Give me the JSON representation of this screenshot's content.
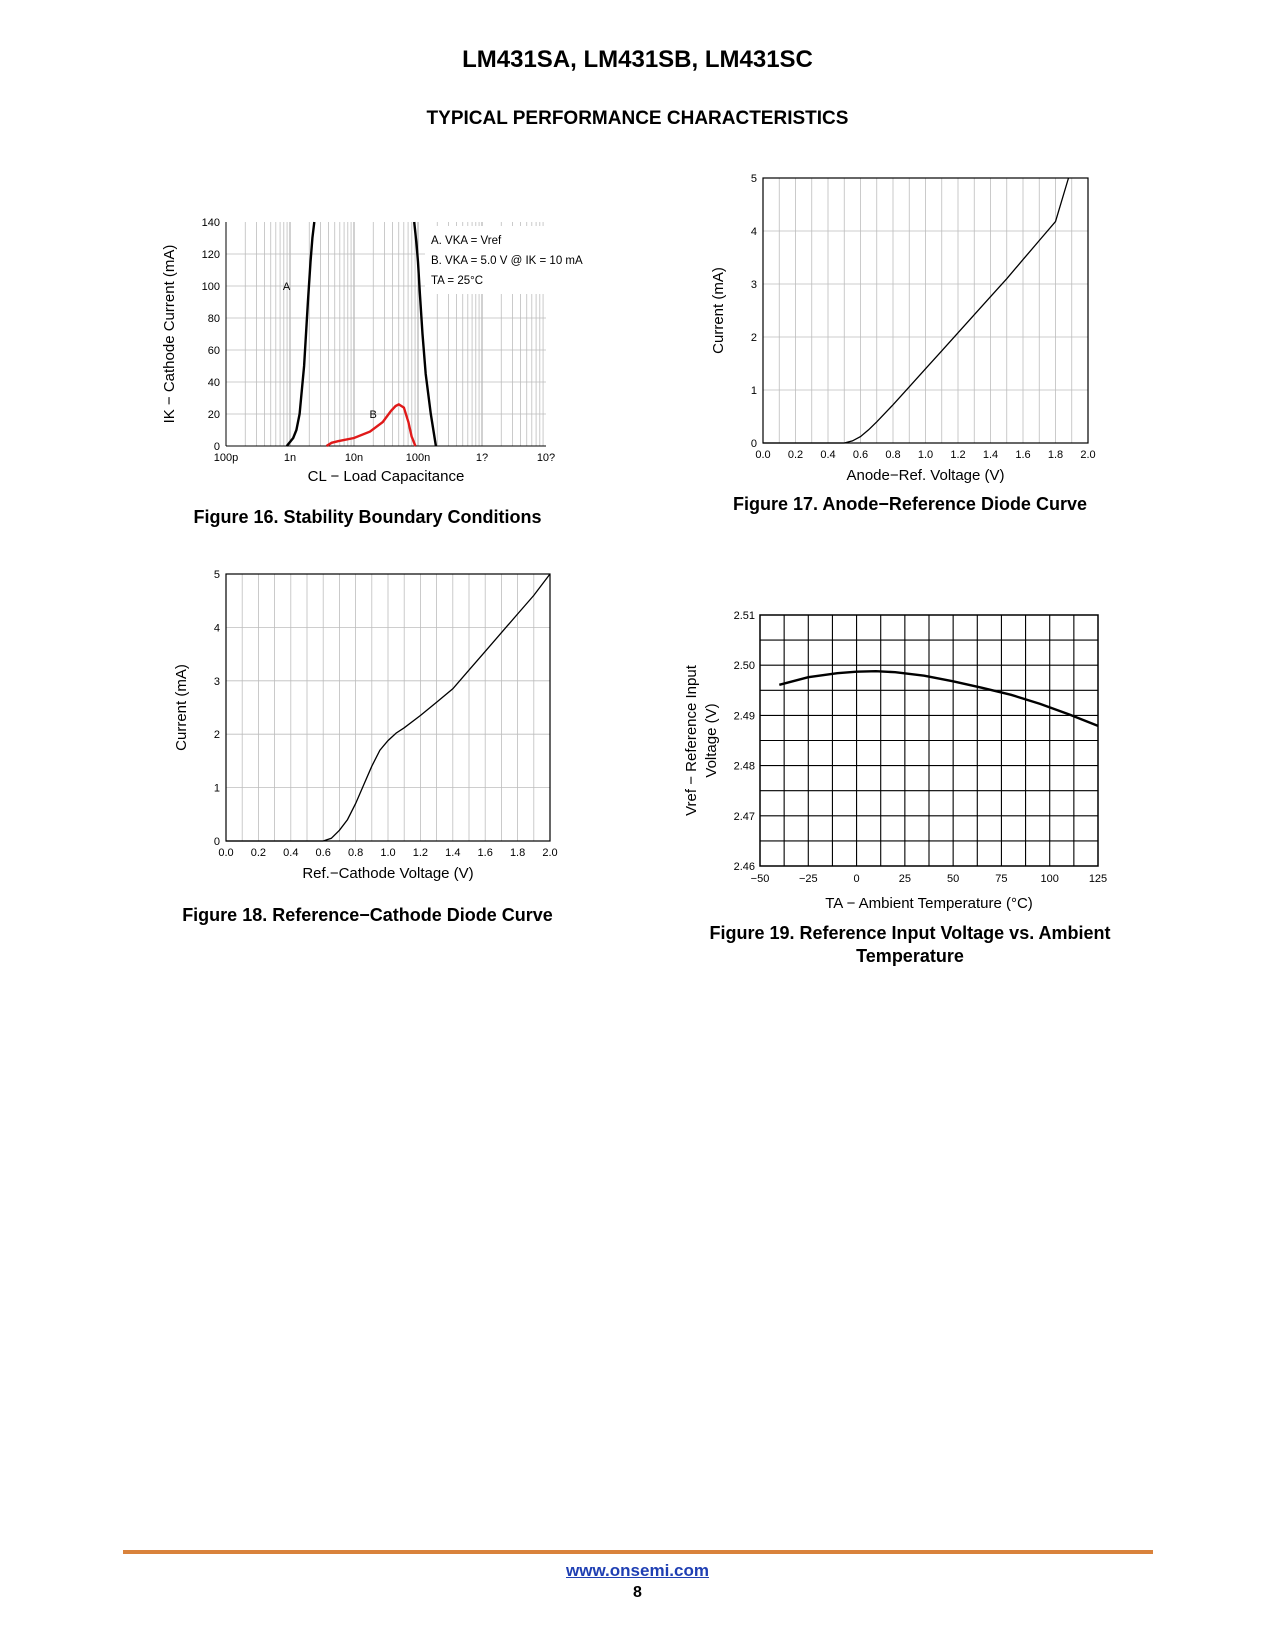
{
  "header": {
    "part_numbers": "LM431SA, LM431SB, LM431SC",
    "section_title": "TYPICAL PERFORMANCE CHARACTERISTICS"
  },
  "footer": {
    "url": "www.onsemi.com",
    "page_number": "8"
  },
  "chart_data": [
    {
      "id": "fig16",
      "type": "line",
      "caption": "Figure 16. Stability Boundary Conditions",
      "xlabel": "CL − Load Capacitance",
      "ylabel": "IK − Cathode Current (mA)",
      "x_scale": "log",
      "x_ticks": [
        "100p",
        "1n",
        "10n",
        "100n",
        "1?",
        "10?"
      ],
      "y_ticks": [
        "0",
        "20",
        "40",
        "60",
        "80",
        "100",
        "120",
        "140"
      ],
      "xlim_log10": [
        -10,
        -5
      ],
      "ylim": [
        0,
        140
      ],
      "legend": [
        "A. VKA = Vref",
        "B. VKA =  5.0 V @ IK = 10 mA",
        "TA = 25°C"
      ],
      "series": [
        {
          "name": "A",
          "color": "#000000",
          "x_log10": [
            -9.05,
            -8.95,
            -8.9,
            -8.85,
            -8.78,
            -8.72,
            -8.68,
            -8.65,
            -8.62
          ],
          "y": [
            0,
            5,
            10,
            20,
            50,
            90,
            115,
            130,
            140
          ],
          "x2_log10": [
            -6.72,
            -6.8,
            -6.88,
            -6.93,
            -6.97,
            -7.0,
            -7.02,
            -7.04,
            -7.06
          ],
          "y2": [
            0,
            20,
            45,
            70,
            95,
            115,
            125,
            133,
            140
          ]
        },
        {
          "name": "B",
          "color": "#e01a1a",
          "x_log10": [
            -8.43,
            -8.35,
            -8.25,
            -8.0,
            -7.75,
            -7.55,
            -7.42,
            -7.35,
            -7.3,
            -7.22,
            -7.15,
            -7.1,
            -7.04
          ],
          "y": [
            0,
            2,
            3,
            5,
            9,
            15,
            22,
            25,
            26,
            24,
            15,
            6,
            0
          ]
        }
      ]
    },
    {
      "id": "fig17",
      "type": "line",
      "caption": "Figure 17. Anode−Reference Diode Curve",
      "xlabel": "Anode−Ref. Voltage (V)",
      "ylabel": "Current (mA)",
      "x_ticks": [
        "0.0",
        "0.2",
        "0.4",
        "0.6",
        "0.8",
        "1.0",
        "1.2",
        "1.4",
        "1.6",
        "1.8",
        "2.0"
      ],
      "y_ticks": [
        "0",
        "1",
        "2",
        "3",
        "4",
        "5"
      ],
      "xlim": [
        0,
        2.0
      ],
      "ylim": [
        0,
        5
      ],
      "series": [
        {
          "x": [
            0.5,
            0.55,
            0.6,
            0.65,
            0.7,
            0.8,
            0.9,
            1.0,
            1.1,
            1.2,
            1.3,
            1.4,
            1.5,
            1.6,
            1.7,
            1.8,
            1.88
          ],
          "y": [
            0,
            0.04,
            0.12,
            0.25,
            0.4,
            0.72,
            1.06,
            1.4,
            1.74,
            2.08,
            2.42,
            2.76,
            3.1,
            3.46,
            3.82,
            4.18,
            5.0
          ]
        }
      ]
    },
    {
      "id": "fig18",
      "type": "line",
      "caption": "Figure 18. Reference−Cathode Diode Curve",
      "xlabel": "Ref.−Cathode Voltage (V)",
      "ylabel": "Current (mA)",
      "x_ticks": [
        "0.0",
        "0.2",
        "0.4",
        "0.6",
        "0.8",
        "1.0",
        "1.2",
        "1.4",
        "1.6",
        "1.8",
        "2.0"
      ],
      "y_ticks": [
        "0",
        "1",
        "2",
        "3",
        "4",
        "5"
      ],
      "xlim": [
        0,
        2.0
      ],
      "ylim": [
        0,
        5
      ],
      "series": [
        {
          "x": [
            0.6,
            0.65,
            0.7,
            0.75,
            0.8,
            0.85,
            0.9,
            0.95,
            1.0,
            1.05,
            1.1,
            1.2,
            1.3,
            1.4,
            1.5,
            1.6,
            1.7,
            1.8,
            1.9,
            2.0
          ],
          "y": [
            0,
            0.05,
            0.2,
            0.4,
            0.7,
            1.05,
            1.4,
            1.7,
            1.88,
            2.02,
            2.12,
            2.35,
            2.6,
            2.85,
            3.2,
            3.55,
            3.9,
            4.25,
            4.6,
            5.0
          ]
        }
      ]
    },
    {
      "id": "fig19",
      "type": "line",
      "caption_line1": "Figure 19. Reference Input Voltage vs. Ambient",
      "caption_line2": "Temperature",
      "xlabel": "TA − Ambient Temperature (°C)",
      "ylabel_line1": "Vref − Reference Input",
      "ylabel_line2": "Voltage (V)",
      "x_ticks": [
        "−50",
        "−25",
        "0",
        "25",
        "50",
        "75",
        "100",
        "125"
      ],
      "y_ticks": [
        "2.46",
        "2.47",
        "2.48",
        "2.49",
        "2.50",
        "2.51"
      ],
      "xlim": [
        -50,
        125
      ],
      "ylim": [
        2.46,
        2.51
      ],
      "series": [
        {
          "x": [
            -40,
            -25,
            -10,
            0,
            10,
            20,
            35,
            50,
            65,
            80,
            95,
            110,
            125
          ],
          "y": [
            2.4961,
            2.4976,
            2.4984,
            2.4987,
            2.4988,
            2.4986,
            2.4979,
            2.4968,
            2.4955,
            2.4941,
            2.4923,
            2.4902,
            2.4879
          ]
        }
      ]
    }
  ]
}
